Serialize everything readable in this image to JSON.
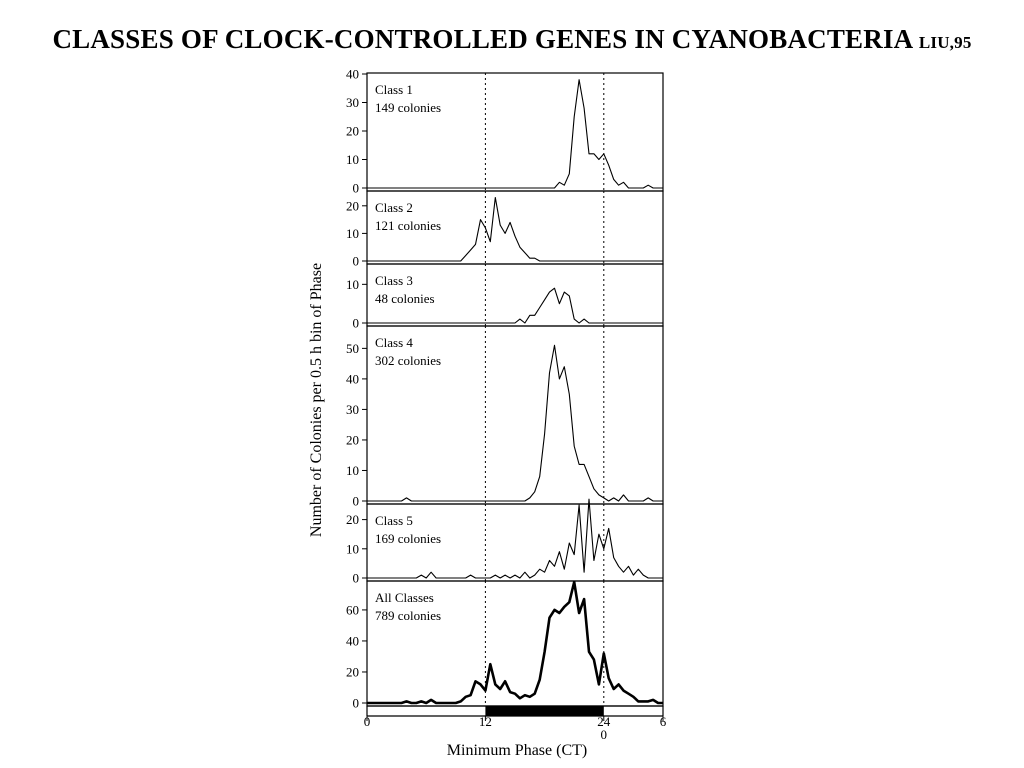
{
  "title": "CLASSES OF CLOCK-CONTROLLED GENES IN CYANOBACTERIA",
  "title_suffix": "LIU,95",
  "chart_data": {
    "type": "line",
    "xlabel": "Minimum Phase (CT)",
    "ylabel": "Number of Colonies per 0.5 h bin of Phase",
    "x_tick_labels": [
      "0",
      "12",
      "24",
      "6"
    ],
    "x_tick_sublabels": [
      {
        "tick": "24",
        "text": "0"
      }
    ],
    "xlim": [
      0,
      30
    ],
    "reference_lines_x": [
      12,
      24
    ],
    "dark_bar": {
      "from": 12,
      "to": 24
    },
    "panels": [
      {
        "label": "Class 1",
        "sublabel": "149 colonies",
        "ylim": [
          0,
          40
        ],
        "yticks": [
          0,
          10,
          20,
          30,
          40
        ],
        "bold": false,
        "x": [
          0,
          19,
          19.5,
          20,
          20.5,
          21,
          21.5,
          22,
          22.5,
          23,
          23.5,
          24,
          24.5,
          25,
          25.5,
          26,
          26.5,
          27,
          27.5,
          28,
          28.5,
          29,
          29.5,
          30
        ],
        "y": [
          0,
          0,
          2,
          1,
          5,
          25,
          38,
          28,
          12,
          12,
          10,
          12,
          8,
          3,
          1,
          2,
          0,
          0,
          0,
          0,
          1,
          0,
          0,
          0
        ]
      },
      {
        "label": "Class 2",
        "sublabel": "121 colonies",
        "ylim": [
          0,
          25
        ],
        "yticks": [
          0,
          10,
          20
        ],
        "bold": false,
        "x": [
          0,
          9.5,
          10,
          10.5,
          11,
          11.5,
          12,
          12.5,
          13,
          13.5,
          14,
          14.5,
          15,
          15.5,
          16,
          16.5,
          17,
          17.5,
          30
        ],
        "y": [
          0,
          0,
          2,
          4,
          6,
          15,
          12,
          7,
          23,
          13,
          10,
          14,
          9,
          5,
          3,
          1,
          1,
          0,
          0
        ]
      },
      {
        "label": "Class 3",
        "sublabel": "48 colonies",
        "ylim": [
          0,
          15
        ],
        "yticks": [
          0,
          10
        ],
        "bold": false,
        "x": [
          0,
          15,
          15.5,
          16,
          16.5,
          17,
          17.5,
          18,
          18.5,
          19,
          19.5,
          20,
          20.5,
          21,
          21.5,
          22,
          22.5,
          30
        ],
        "y": [
          0,
          0,
          1,
          0,
          2,
          2,
          4,
          6,
          8,
          9,
          5,
          8,
          7,
          1,
          0,
          1,
          0,
          0
        ]
      },
      {
        "label": "Class 4",
        "sublabel": "302 colonies",
        "ylim": [
          0,
          57
        ],
        "yticks": [
          0,
          10,
          20,
          30,
          40,
          50
        ],
        "bold": false,
        "x": [
          0,
          3.5,
          4,
          4.5,
          5,
          16,
          16.5,
          17,
          17.5,
          18,
          18.5,
          19,
          19.5,
          20,
          20.5,
          21,
          21.5,
          22,
          22.5,
          23,
          23.5,
          24,
          24.5,
          25,
          25.5,
          26,
          26.5,
          27,
          27.5,
          28,
          28.5,
          29,
          30
        ],
        "y": [
          0,
          0,
          1,
          0,
          0,
          0,
          1,
          3,
          8,
          22,
          42,
          51,
          40,
          44,
          35,
          18,
          12,
          12,
          8,
          4,
          2,
          1,
          0,
          1,
          0,
          2,
          0,
          0,
          0,
          0,
          1,
          0,
          0
        ]
      },
      {
        "label": "Class 5",
        "sublabel": "169 colonies",
        "ylim": [
          0,
          25
        ],
        "yticks": [
          0,
          10,
          20
        ],
        "bold": false,
        "x": [
          0,
          5,
          5.5,
          6,
          6.5,
          7,
          10,
          10.5,
          11,
          12.5,
          13,
          13.5,
          14,
          14.5,
          15,
          15.5,
          16,
          16.5,
          17,
          17.5,
          18,
          18.5,
          19,
          19.5,
          20,
          20.5,
          21,
          21.5,
          22,
          22.5,
          23,
          23.5,
          24,
          24.5,
          25,
          25.5,
          26,
          26.5,
          27,
          27.5,
          28,
          28.5,
          30
        ],
        "y": [
          0,
          0,
          1,
          0,
          2,
          0,
          0,
          1,
          0,
          0,
          1,
          0,
          1,
          0,
          1,
          0,
          2,
          0,
          1,
          3,
          2,
          6,
          4,
          9,
          3,
          12,
          8,
          25,
          2,
          27,
          6,
          15,
          10,
          17,
          7,
          4,
          2,
          4,
          1,
          3,
          1,
          0,
          0
        ]
      },
      {
        "label": "All Classes",
        "sublabel": "789 colonies",
        "ylim": [
          0,
          78
        ],
        "yticks": [
          0,
          20,
          40,
          60
        ],
        "bold": true,
        "x": [
          0,
          3.5,
          4,
          4.5,
          5,
          5.5,
          6,
          6.5,
          7,
          9,
          9.5,
          10,
          10.5,
          11,
          11.5,
          12,
          12.5,
          13,
          13.5,
          14,
          14.5,
          15,
          15.5,
          16,
          16.5,
          17,
          17.5,
          18,
          18.5,
          19,
          19.5,
          20,
          20.5,
          21,
          21.5,
          22,
          22.5,
          23,
          23.5,
          24,
          24.5,
          25,
          25.5,
          26,
          26.5,
          27,
          27.5,
          28,
          28.5,
          29,
          29.5,
          30
        ],
        "y": [
          0,
          0,
          1,
          0,
          0,
          1,
          0,
          2,
          0,
          0,
          1,
          4,
          5,
          14,
          12,
          8,
          25,
          12,
          9,
          14,
          7,
          6,
          3,
          5,
          4,
          6,
          15,
          33,
          55,
          60,
          58,
          62,
          65,
          78,
          58,
          67,
          33,
          28,
          12,
          32,
          16,
          9,
          12,
          8,
          6,
          4,
          1,
          1,
          1,
          2,
          0,
          0
        ]
      }
    ]
  }
}
